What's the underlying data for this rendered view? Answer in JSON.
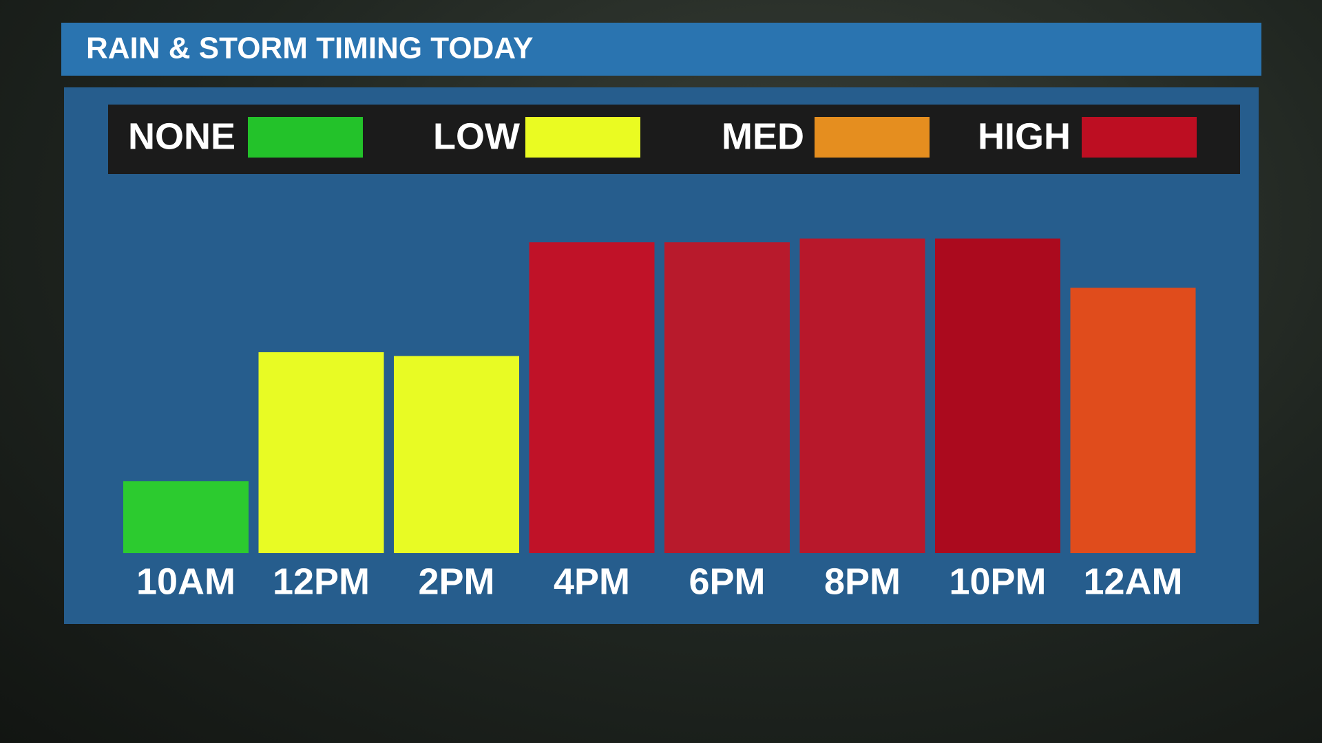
{
  "chart_data": {
    "type": "bar",
    "title": "RAIN & STORM TIMING TODAY",
    "legend": [
      {
        "name": "NONE",
        "color": "#23c22a"
      },
      {
        "name": "LOW",
        "color": "#eafb22"
      },
      {
        "name": "MED",
        "color": "#e58e1f"
      },
      {
        "name": "HIGH",
        "color": "#bd0e22"
      }
    ],
    "categories": [
      "10AM",
      "12PM",
      "2PM",
      "4PM",
      "6PM",
      "8PM",
      "10PM",
      "12AM"
    ],
    "values": [
      19,
      53,
      52,
      82,
      82,
      83,
      83,
      70
    ],
    "colors": [
      "#2ccb2f",
      "#e8fb24",
      "#e8fb24",
      "#c01228",
      "#b81a2c",
      "#b8182b",
      "#ab0a1e",
      "#e04c1c"
    ]
  }
}
